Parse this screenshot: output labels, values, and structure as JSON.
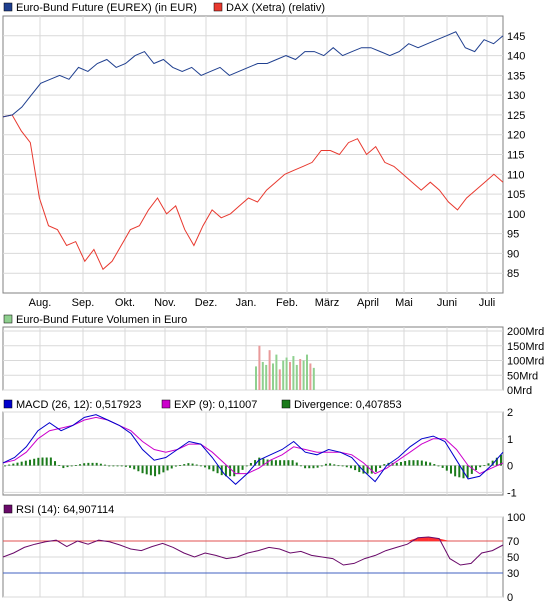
{
  "colors": {
    "bund": "#1f3f8f",
    "dax": "#e8392f",
    "volume_green": "#8fd08f",
    "volume_red": "#e99a9a",
    "macd": "#0000cc",
    "exp": "#cc00cc",
    "divergence": "#1a7a1a",
    "rsi": "#6a0a6a",
    "rsi_fill": "#ff3030",
    "rsi_70": "#e05050",
    "rsi_30": "#4060c0",
    "grid": "#d9d9d9",
    "frame": "#808080"
  },
  "chart_data": [
    {
      "type": "line",
      "legend": [
        {
          "name": "Euro-Bund Future (EUREX) (in EUR)",
          "color": "#1f3f8f"
        },
        {
          "name": "DAX (Xetra) (relativ)",
          "color": "#e8392f"
        }
      ],
      "x_tick_labels": [
        "Aug.",
        "Sep.",
        "Okt.",
        "Nov.",
        "Dez.",
        "Jan.",
        "Feb.",
        "März",
        "April",
        "Mai",
        "Juni",
        "Juli"
      ],
      "y_ticks": [
        85,
        90,
        95,
        100,
        105,
        110,
        115,
        120,
        125,
        130,
        135,
        140,
        145
      ],
      "ylim": [
        80,
        150
      ],
      "series": [
        {
          "name": "Euro-Bund Future (EUREX) (in EUR)",
          "values": [
            124.5,
            125,
            127,
            130,
            133,
            134,
            135,
            134,
            137,
            136,
            138,
            139,
            137,
            138,
            140,
            141,
            138,
            139,
            137,
            136,
            137,
            135,
            136,
            137,
            135,
            136,
            137,
            138,
            138,
            139,
            140,
            139,
            141,
            141,
            140,
            142,
            140,
            141,
            142,
            142,
            141,
            140,
            141,
            143,
            142,
            143,
            144,
            145,
            146,
            142,
            141,
            144,
            143,
            145
          ]
        },
        {
          "name": "DAX (Xetra) (relativ)",
          "values": [
            124.5,
            125,
            121,
            118,
            104,
            97,
            96,
            92,
            93,
            88,
            91,
            86,
            88,
            92,
            96,
            97,
            101,
            104,
            100,
            102,
            96,
            92,
            97,
            101,
            99,
            100,
            102,
            104,
            103,
            106,
            108,
            110,
            111,
            112,
            113,
            116,
            116,
            115,
            118,
            119,
            115,
            117,
            113,
            112,
            110,
            108,
            106,
            108,
            106,
            103,
            101,
            104,
            106,
            108,
            110,
            108
          ]
        }
      ]
    },
    {
      "type": "bar",
      "title": "Euro-Bund Future Volumen in Euro",
      "y_tick_labels": [
        "200Mrd",
        "150Mrd",
        "100Mrd",
        "50Mrd",
        "0Mrd"
      ],
      "ylim": [
        0,
        200
      ],
      "values": [
        80,
        150,
        95,
        85,
        135,
        90,
        120,
        70,
        100,
        110,
        95,
        115,
        85,
        105,
        100,
        120,
        90,
        75
      ]
    },
    {
      "type": "line",
      "legend": [
        {
          "name": "MACD (26, 12): 0,517923",
          "color": "#0000cc"
        },
        {
          "name": "EXP (9): 0,11007",
          "color": "#cc00cc"
        },
        {
          "name": "Divergence: 0,407853",
          "color": "#1a7a1a"
        }
      ],
      "y_ticks": [
        -1,
        0,
        1,
        2
      ],
      "ylim": [
        -1.1,
        2.0
      ],
      "series": [
        {
          "name": "MACD",
          "values": [
            0.1,
            0.3,
            0.7,
            1.3,
            1.6,
            1.3,
            1.5,
            1.8,
            1.9,
            1.7,
            1.5,
            1.2,
            0.6,
            0.2,
            0.3,
            0.6,
            0.9,
            0.8,
            0.3,
            -0.3,
            -0.7,
            -0.3,
            0.2,
            0.4,
            0.6,
            0.9,
            0.5,
            0.4,
            0.6,
            0.5,
            0.3,
            -0.2,
            -0.6,
            0.0,
            0.3,
            0.7,
            1.0,
            1.1,
            0.9,
            0.2,
            -0.5,
            -0.4,
            0.0,
            0.5
          ]
        },
        {
          "name": "EXP",
          "values": [
            0.1,
            0.2,
            0.5,
            1.0,
            1.3,
            1.4,
            1.5,
            1.7,
            1.8,
            1.7,
            1.5,
            1.3,
            0.9,
            0.6,
            0.5,
            0.6,
            0.8,
            0.8,
            0.5,
            0.1,
            -0.3,
            -0.3,
            -0.1,
            0.2,
            0.4,
            0.7,
            0.6,
            0.5,
            0.5,
            0.5,
            0.4,
            0.1,
            -0.3,
            -0.1,
            0.2,
            0.5,
            0.8,
            1.0,
            1.0,
            0.6,
            0.0,
            -0.3,
            -0.1,
            0.1
          ]
        }
      ]
    },
    {
      "type": "line",
      "legend": [
        {
          "name": "RSI (14): 64,907114",
          "color": "#6a0a6a"
        }
      ],
      "y_ticks": [
        0,
        30,
        50,
        70,
        100
      ],
      "ylim": [
        0,
        100
      ],
      "reference_lines": [
        70,
        30
      ],
      "series": [
        {
          "name": "RSI (14)",
          "values": [
            50,
            55,
            62,
            66,
            69,
            71,
            63,
            70,
            66,
            71,
            69,
            65,
            60,
            58,
            63,
            67,
            62,
            55,
            50,
            55,
            52,
            48,
            50,
            55,
            58,
            62,
            60,
            55,
            57,
            52,
            50,
            48,
            40,
            42,
            48,
            52,
            58,
            62,
            66,
            74,
            75,
            73,
            48,
            40,
            42,
            55,
            58,
            65
          ]
        }
      ]
    }
  ]
}
